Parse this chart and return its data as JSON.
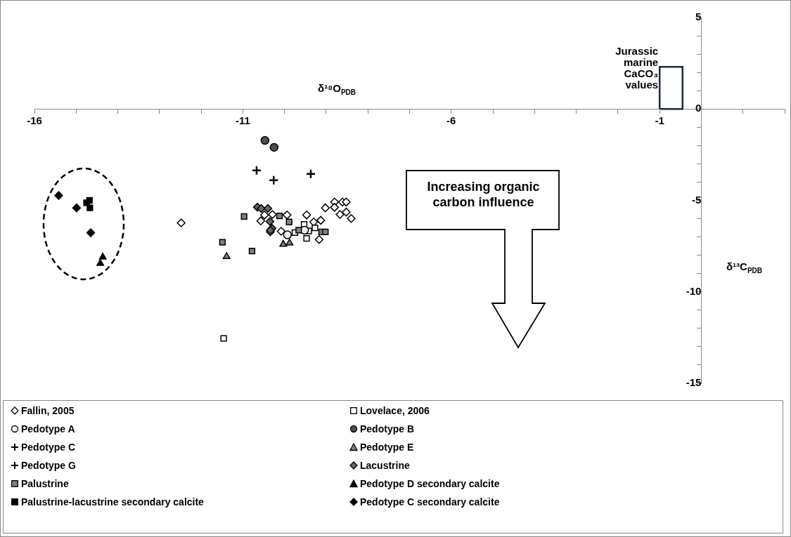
{
  "chart_data": {
    "type": "scatter",
    "xlabel": "δ¹⁸O$_{PDB}$",
    "ylabel": "δ¹³C$_{PDB}$",
    "xlim": [
      -16,
      2
    ],
    "ylim": [
      -15,
      5
    ],
    "xticks": [
      -16,
      {
        "value": -15,
        "label": null
      },
      {
        "value": -14,
        "label": null
      },
      {
        "value": -13,
        "label": null
      },
      {
        "value": -12,
        "label": null
      },
      -11,
      {
        "value": -10,
        "label": null
      },
      {
        "value": -9,
        "label": null
      },
      {
        "value": -8,
        "label": null
      },
      {
        "value": -7,
        "label": null
      },
      -6,
      {
        "value": -5,
        "label": null
      },
      {
        "value": -4,
        "label": null
      },
      {
        "value": -3,
        "label": null
      },
      {
        "value": -2,
        "label": null
      },
      -1,
      {
        "value": 0,
        "label": null
      },
      {
        "value": 1,
        "label": null
      },
      {
        "value": 2,
        "label": null
      }
    ],
    "yticks": [
      5,
      {
        "value": 4,
        "label": null
      },
      {
        "value": 3,
        "label": null
      },
      {
        "value": 2,
        "label": null
      },
      {
        "value": 1,
        "label": null
      },
      0,
      {
        "value": -1,
        "label": null
      },
      {
        "value": -2,
        "label": null
      },
      {
        "value": -3,
        "label": null
      },
      {
        "value": -4,
        "label": null
      },
      -5,
      {
        "value": -6,
        "label": null
      },
      {
        "value": -7,
        "label": null
      },
      {
        "value": -8,
        "label": null
      },
      {
        "value": -9,
        "label": null
      },
      -10,
      {
        "value": -11,
        "label": null
      },
      {
        "value": -12,
        "label": null
      },
      {
        "value": -13,
        "label": null
      },
      {
        "value": -14,
        "label": null
      },
      -15
    ],
    "legend": "bottom",
    "annotations": [
      "Increasing organic carbon influence",
      "Jurassic marine CaCO₃ values"
    ],
    "series": [
      {
        "name": "Fallin, 2005",
        "marker": "diamond",
        "color": "#ffffff",
        "x": [
          -12.48,
          -10.57,
          -10.48,
          -10.29,
          -9.94,
          -10.08,
          -10.34,
          -9.47,
          -9.13,
          -9.17,
          -9.3,
          -9.02,
          -8.8,
          -8.8,
          -8.61,
          -8.52,
          -8.67,
          -8.52,
          -8.4
        ],
        "values": [
          -6.23,
          -6.12,
          -5.8,
          -5.77,
          -5.8,
          -6.69,
          -6.72,
          -5.8,
          -6.09,
          -7.14,
          -6.18,
          -5.41,
          -5.09,
          -5.38,
          -5.09,
          -5.09,
          -5.77,
          -5.64,
          -5.99
        ]
      },
      {
        "name": "Lovelace, 2006",
        "marker": "square",
        "color": "#ffffff",
        "x": [
          -11.46,
          -9.53,
          -9.42,
          -9.47,
          -9.27,
          -9.75
        ],
        "values": [
          -12.55,
          -6.31,
          -6.67,
          -7.08,
          -6.5,
          -6.76
        ]
      },
      {
        "name": "Pedotype A",
        "marker": "circle",
        "color": "#eeeeee",
        "x": [
          -9.93,
          -9.52
        ],
        "values": [
          -6.88,
          -6.63
        ]
      },
      {
        "name": "Pedotype B",
        "marker": "circle",
        "color": "#4d4d4d",
        "x": [
          -10.47,
          -10.25
        ],
        "values": [
          -1.72,
          -2.1
        ]
      },
      {
        "name": "Pedotype C",
        "marker": "cross",
        "color": "#000000",
        "x": [
          -10.67
        ],
        "values": [
          -3.36
        ]
      },
      {
        "name": "Pedotype E",
        "marker": "triangle",
        "color": "#6e8a78",
        "x": [
          -11.39,
          -10.03,
          -9.88
        ],
        "values": [
          -8.07,
          -7.4,
          -7.33
        ]
      },
      {
        "name": "Pedotype G",
        "marker": "cross",
        "color": "#000000",
        "x": [
          -10.26,
          -9.37
        ],
        "values": [
          -3.9,
          -3.55
        ]
      },
      {
        "name": "Lacustrine",
        "marker": "diamond",
        "color": "#666666",
        "x": [
          -10.65,
          -10.56,
          -10.4,
          -10.35,
          -10.3,
          -10.34
        ],
        "values": [
          -5.37,
          -5.44,
          -5.44,
          -6.15,
          -6.53,
          -6.63
        ]
      },
      {
        "name": "Palustrine",
        "marker": "square",
        "color": "#808080",
        "x": [
          -10.97,
          -11.49,
          -10.78,
          -10.12,
          -9.89,
          -9.66,
          -9.11,
          -9.02
        ],
        "values": [
          -5.88,
          -7.29,
          -7.77,
          -5.85,
          -6.18,
          -6.63,
          -6.72,
          -6.72
        ]
      },
      {
        "name": "Pedotype D secondary calcite",
        "marker": "triangle",
        "color": "#000000",
        "x": [
          -14.36,
          -14.42
        ],
        "values": [
          -8.1,
          -8.45
        ]
      },
      {
        "name": "Palustrine-lacustrine secondary calcite",
        "marker": "square",
        "color": "#000000",
        "x": [
          -14.68,
          -14.75,
          -14.67
        ],
        "values": [
          -5.0,
          -5.13,
          -5.41
        ]
      },
      {
        "name": "Pedotype C secondary calcite",
        "marker": "diamond",
        "color": "#000000",
        "x": [
          -15.42,
          -14.99,
          -14.65
        ],
        "values": [
          -4.73,
          -5.41,
          -6.77
        ]
      }
    ]
  }
}
